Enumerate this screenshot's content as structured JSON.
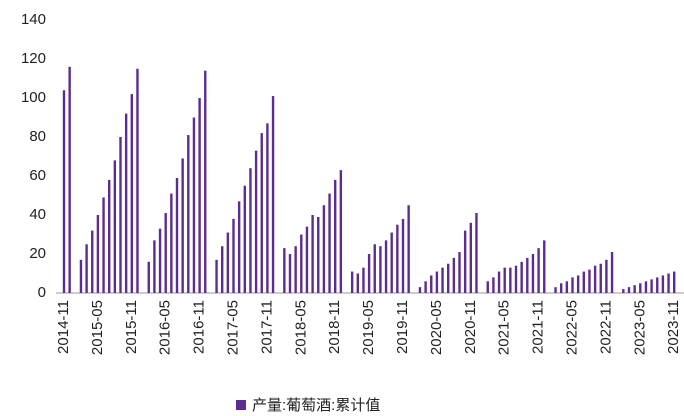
{
  "chart_data": {
    "type": "bar",
    "categories": [
      "2014-11",
      null,
      null,
      null,
      null,
      null,
      "2015-05",
      null,
      null,
      null,
      null,
      null,
      "2015-11",
      null,
      null,
      null,
      null,
      null,
      "2016-05",
      null,
      null,
      null,
      null,
      null,
      "2016-11",
      null,
      null,
      null,
      null,
      null,
      "2017-05",
      null,
      null,
      null,
      null,
      null,
      "2017-11",
      null,
      null,
      null,
      null,
      null,
      "2018-05",
      null,
      null,
      null,
      null,
      null,
      "2018-11",
      null,
      null,
      null,
      null,
      null,
      "2019-05",
      null,
      null,
      null,
      null,
      null,
      "2019-11",
      null,
      null,
      null,
      null,
      null,
      "2020-05",
      null,
      null,
      null,
      null,
      null,
      "2020-11",
      null,
      null,
      null,
      null,
      null,
      "2021-05",
      null,
      null,
      null,
      null,
      null,
      "2021-11",
      null,
      null,
      null,
      null,
      null,
      "2022-05",
      null,
      null,
      null,
      null,
      null,
      "2022-11",
      null,
      null,
      null,
      null,
      null,
      "2023-05",
      null,
      null,
      null,
      null,
      null,
      "2023-11"
    ],
    "series": [
      {
        "name": "产量:葡萄酒:累计值",
        "color": "#5b2d90",
        "values": [
          104,
          116,
          null,
          17,
          25,
          32,
          40,
          49,
          58,
          68,
          80,
          92,
          102,
          115,
          null,
          16,
          27,
          33,
          41,
          51,
          59,
          69,
          81,
          90,
          100,
          114,
          null,
          17,
          24,
          31,
          38,
          47,
          55,
          64,
          73,
          82,
          87,
          101,
          null,
          23,
          20,
          24,
          30,
          34,
          40,
          39,
          45,
          51,
          58,
          63,
          null,
          11,
          10,
          13,
          20,
          25,
          24,
          27,
          31,
          35,
          38,
          45,
          null,
          3,
          6,
          9,
          11,
          13,
          15,
          18,
          21,
          32,
          36,
          41,
          null,
          6,
          8,
          11,
          13,
          13,
          14,
          16,
          18,
          20,
          23,
          27,
          null,
          3,
          5,
          6,
          8,
          9,
          11,
          12,
          14,
          15,
          17,
          21,
          null,
          2,
          3,
          4,
          5,
          6,
          7,
          8,
          9,
          10,
          11
        ]
      }
    ],
    "ylim": [
      0,
      140
    ],
    "yticks": [
      0,
      20,
      40,
      60,
      80,
      100,
      120,
      140
    ],
    "grid": false,
    "legend": "bottom"
  }
}
